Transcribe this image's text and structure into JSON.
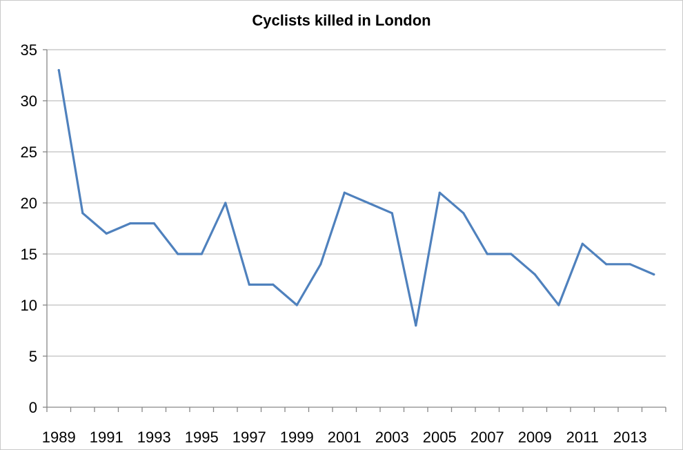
{
  "chart_data": {
    "type": "line",
    "title": "Cyclists killed in London",
    "xlabel": "",
    "ylabel": "",
    "x": [
      1989,
      1990,
      1991,
      1992,
      1993,
      1994,
      1995,
      1996,
      1997,
      1998,
      1999,
      2000,
      2001,
      2002,
      2003,
      2004,
      2005,
      2006,
      2007,
      2008,
      2009,
      2010,
      2011,
      2012,
      2013,
      2014
    ],
    "series": [
      {
        "name": "",
        "values": [
          33,
          19,
          17,
          18,
          18,
          15,
          15,
          20,
          12,
          12,
          10,
          14,
          21,
          20,
          19,
          8,
          21,
          19,
          15,
          15,
          13,
          10,
          16,
          14,
          14,
          13
        ]
      }
    ],
    "x_tick_labels": [
      "1989",
      "1991",
      "1993",
      "1995",
      "1997",
      "1999",
      "2001",
      "2003",
      "2005",
      "2007",
      "2009",
      "2011",
      "2013"
    ],
    "y_ticks": [
      0,
      5,
      10,
      15,
      20,
      25,
      30,
      35
    ],
    "ylim": [
      0,
      35
    ],
    "grid": "horizontal",
    "legend": "none",
    "colors": {
      "line": "#4f81bd",
      "grid": "#bfbfbf",
      "axis": "#868686"
    }
  }
}
